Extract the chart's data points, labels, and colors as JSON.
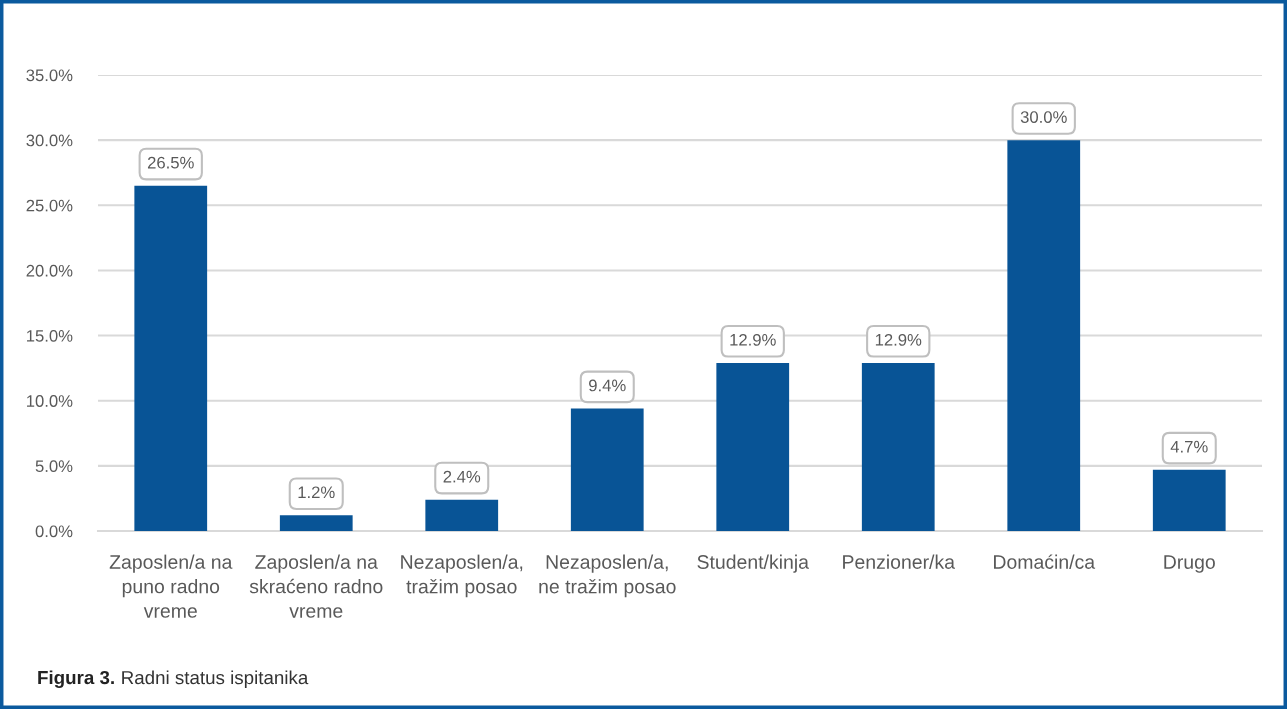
{
  "chart_data": {
    "type": "bar",
    "categories": [
      "Zaposlen/a na\npuno radno\nvreme",
      "Zaposlen/a na\nskraćeno radno\nvreme",
      "Nezaposlen/a,\ntražim posao",
      "Nezaposlen/a,\nne tražim posao",
      "Student/kinja",
      "Penzioner/ka",
      "Domaćin/ca",
      "Drugo"
    ],
    "values": [
      26.5,
      1.2,
      2.4,
      9.4,
      12.9,
      12.9,
      30.0,
      4.7
    ],
    "value_labels": [
      "26.5%",
      "1.2%",
      "2.4%",
      "9.4%",
      "12.9%",
      "12.9%",
      "30.0%",
      "4.7%"
    ],
    "color": "#085496",
    "ylim": [
      0,
      35
    ],
    "yticks": [
      {
        "value": 0,
        "label": "0.0%"
      },
      {
        "value": 5,
        "label": "5.0%"
      },
      {
        "value": 10,
        "label": "10.0%"
      },
      {
        "value": 15,
        "label": "15.0%"
      },
      {
        "value": 20,
        "label": "20.0%"
      },
      {
        "value": 25,
        "label": "25.0%"
      },
      {
        "value": 30,
        "label": "30.0%"
      },
      {
        "value": 35,
        "label": "35.0%"
      }
    ],
    "grid": "y",
    "annotations": [
      "Figura 3.",
      "Radni status ispitanika"
    ]
  }
}
